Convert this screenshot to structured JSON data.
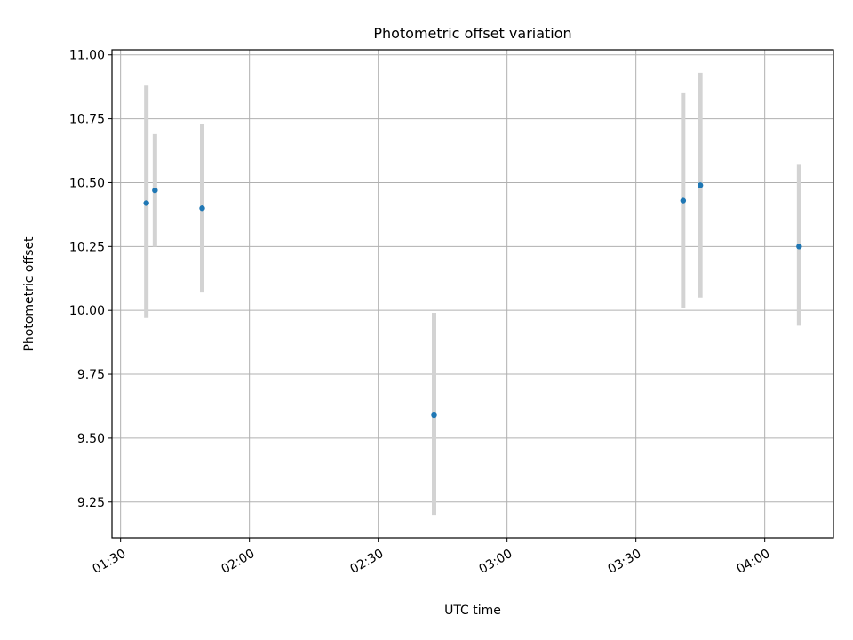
{
  "chart_data": {
    "type": "scatter",
    "title": "Photometric offset variation",
    "xlabel": "UTC time",
    "ylabel": "Photometric offset",
    "x_axis_type": "time",
    "xlim": [
      "01:28",
      "04:16"
    ],
    "ylim": [
      9.11,
      11.02
    ],
    "xticks": [
      "01:30",
      "02:00",
      "02:30",
      "03:00",
      "03:30",
      "04:00"
    ],
    "yticks": [
      "9.25",
      "9.50",
      "9.75",
      "10.00",
      "10.25",
      "10.50",
      "10.75",
      "11.00"
    ],
    "grid": true,
    "colors": {
      "point": "#1f77b4",
      "errorbar": "#d3d3d3",
      "grid": "#b0b0b0"
    },
    "series": [
      {
        "points": [
          {
            "x": "01:36",
            "y": 10.42,
            "ylow": 9.97,
            "yhigh": 10.88
          },
          {
            "x": "01:38",
            "y": 10.47,
            "ylow": 10.25,
            "yhigh": 10.69
          },
          {
            "x": "01:49",
            "y": 10.4,
            "ylow": 10.07,
            "yhigh": 10.73
          },
          {
            "x": "02:43",
            "y": 9.59,
            "ylow": 9.2,
            "yhigh": 9.99
          },
          {
            "x": "03:41",
            "y": 10.43,
            "ylow": 10.01,
            "yhigh": 10.85
          },
          {
            "x": "03:45",
            "y": 10.49,
            "ylow": 10.05,
            "yhigh": 10.93
          },
          {
            "x": "04:08",
            "y": 10.25,
            "ylow": 9.94,
            "yhigh": 10.57
          }
        ]
      }
    ]
  }
}
